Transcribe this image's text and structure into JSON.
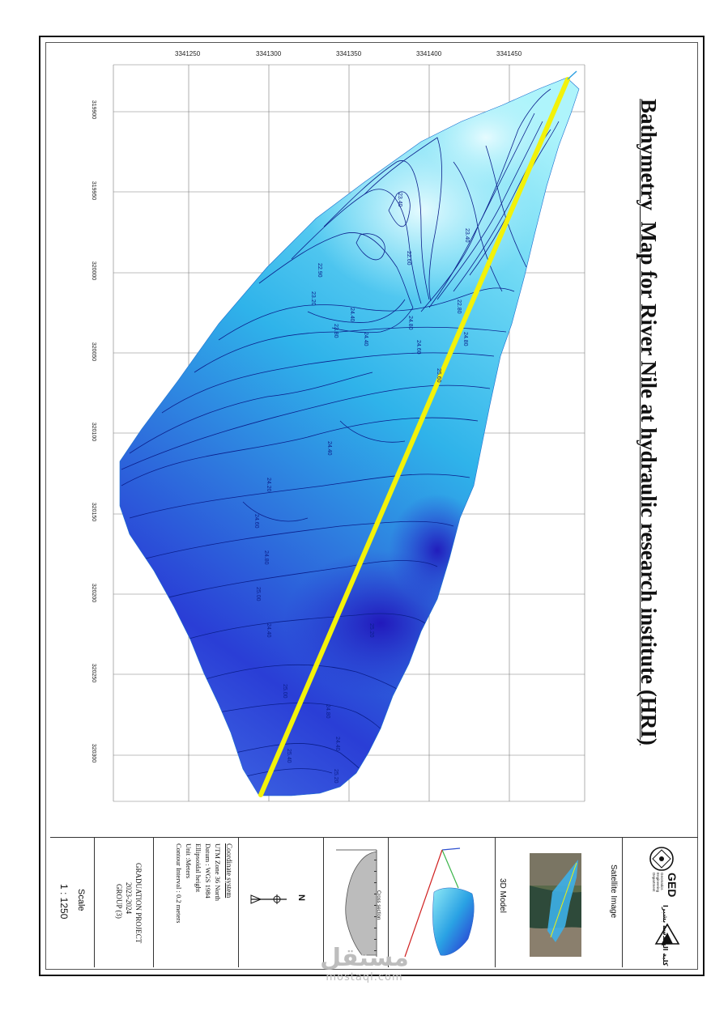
{
  "title": {
    "part1": "Bathymetry",
    "part2": "Map for River Nile at hydraulic research institute (HRI)"
  },
  "x_ticks": [
    "3341250",
    "3341300",
    "3341350",
    "3341400",
    "3341450"
  ],
  "y_ticks": [
    "319900",
    "319950",
    "320000",
    "320050",
    "320100",
    "320150",
    "320200",
    "320250",
    "320300"
  ],
  "contours": [
    "23.40",
    "23.40",
    "22.60",
    "22.90",
    "23.20",
    "22.80",
    "24.40",
    "23.80",
    "24.80",
    "24.40",
    "24.80",
    "24.60",
    "25.60",
    "24.40",
    "24.20",
    "24.60",
    "24.80",
    "25.00",
    "24.40",
    "25.20",
    "25.00",
    "24.80",
    "24.40",
    "25.20",
    "25.40"
  ],
  "legend": {
    "satellite": "Satellite Image",
    "model3d": "3D Model",
    "section_title": "Cross section",
    "coordinate": {
      "heading": "Coordinate system",
      "lines": [
        "UTM Zone 36 North",
        "Datum : WGS 1984",
        "Ellipsoidal height",
        "Unit :Meters",
        "Contour Interval : 0.2 meters"
      ]
    },
    "project": [
      "GRADUATION PROJECT",
      "2023-2024",
      "GROUP (3)"
    ],
    "scale_label": "Scale",
    "scale_value": "1 : 1250",
    "north": "N",
    "logo_ged": "GED",
    "logo_ged_sub": "Geomatics Engineering Department",
    "logo_faculty": "كلية الهندسة بشبرا"
  },
  "watermark": {
    "arabic": "مستقل",
    "latin": "mostaql.com"
  },
  "colors": {
    "shallow": "#aef4fb",
    "mid": "#2fb3ea",
    "deep": "#2a1fd0",
    "line": "#f2f20a",
    "contour": "#0b1f8c"
  }
}
